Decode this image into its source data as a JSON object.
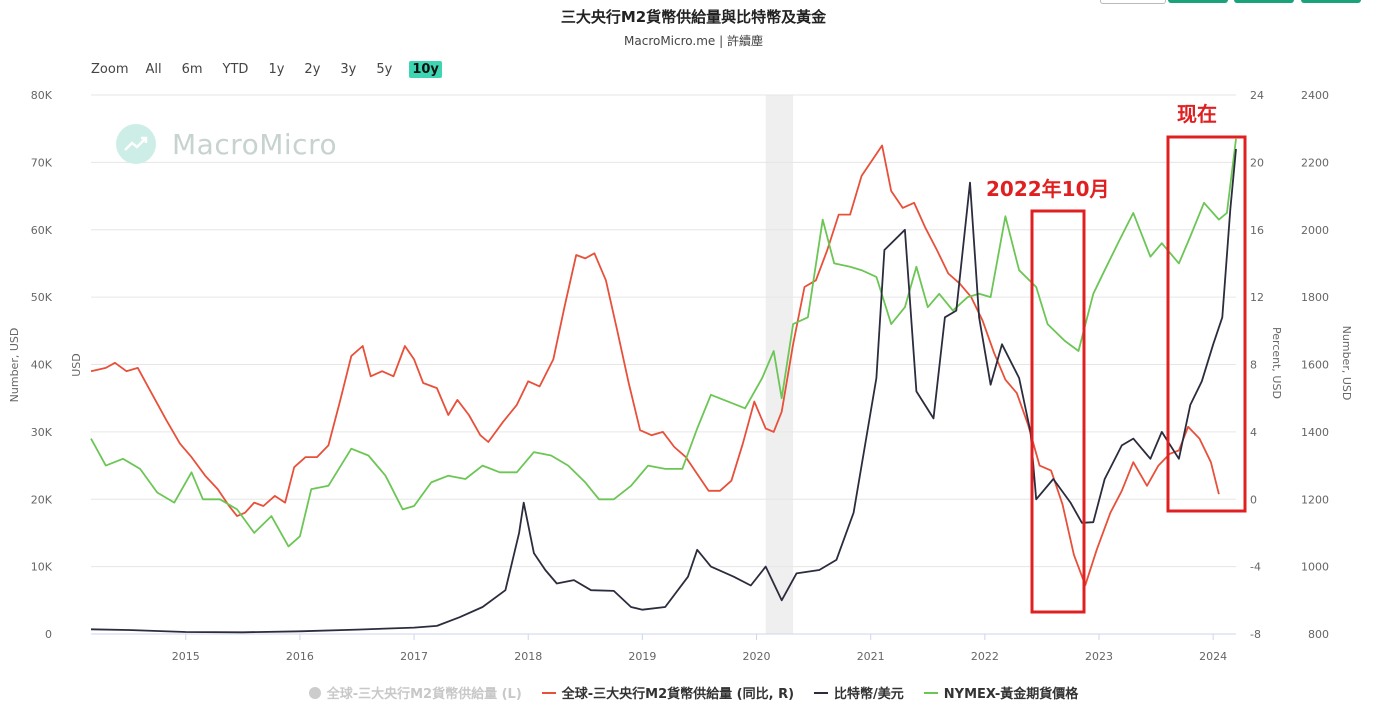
{
  "header": {
    "title": "三大央行M2貨幣供給量與比特幣及黃金",
    "subtitle": "MacroMicro.me | 許續塵"
  },
  "zoom": {
    "label": "Zoom",
    "options": [
      "All",
      "6m",
      "YTD",
      "1y",
      "2y",
      "3y",
      "5y",
      "10y"
    ],
    "selected": "10y"
  },
  "watermark": {
    "text": "MacroMicro"
  },
  "annotations": {
    "oct2022": "2022年10月",
    "now": "现在"
  },
  "legend": [
    {
      "label": "全球-三大央行M2貨幣供給量 (L)",
      "color": "#cccccc",
      "hidden": true
    },
    {
      "label": "全球-三大央行M2貨幣供給量 (同比, R)",
      "color": "#e8503a",
      "hidden": false
    },
    {
      "label": "比特幣/美元",
      "color": "#2b2d3e",
      "hidden": false
    },
    {
      "label": "NYMEX-黃金期貨價格",
      "color": "#6cc655",
      "hidden": false
    }
  ],
  "top_buttons": {
    "colors": [
      "#ffffff",
      "#1aa37a",
      "#1aa37a",
      "#1aa37a"
    ]
  },
  "chart_data": {
    "type": "line",
    "title": "三大央行M2貨幣供給量與比特幣及黃金",
    "subtitle": "MacroMicro.me | 許續塵",
    "x_range": [
      2014.17,
      2024.2
    ],
    "x_ticks": [
      "2015",
      "2016",
      "2017",
      "2018",
      "2019",
      "2020",
      "2021",
      "2022",
      "2023",
      "2024"
    ],
    "shaded_period": [
      2020.08,
      2020.32
    ],
    "axes": {
      "left": {
        "label": "Number, USD",
        "unit_label": "USD",
        "min": 0,
        "max": 80000,
        "ticks": [
          "0",
          "10K",
          "20K",
          "30K",
          "40K",
          "50K",
          "60K",
          "70K",
          "80K"
        ]
      },
      "right_pct": {
        "label": "Percent, USD",
        "min": -8,
        "max": 24,
        "ticks": [
          "-8",
          "-4",
          "0",
          "4",
          "8",
          "12",
          "16",
          "20",
          "24"
        ]
      },
      "right_gold": {
        "label": "Number, USD",
        "min": 800,
        "max": 2400,
        "ticks": [
          "800",
          "1000",
          "1200",
          "1400",
          "1600",
          "1800",
          "2000",
          "2200",
          "2400"
        ]
      }
    },
    "series": [
      {
        "name": "全球-三大央行M2貨幣供給量 (同比, R)",
        "axis": "right_pct",
        "color": "#e8503a",
        "points": [
          [
            2014.17,
            7.6
          ],
          [
            2014.3,
            7.8
          ],
          [
            2014.38,
            8.1
          ],
          [
            2014.48,
            7.6
          ],
          [
            2014.58,
            7.8
          ],
          [
            2014.7,
            6.3
          ],
          [
            2014.83,
            4.7
          ],
          [
            2014.95,
            3.3
          ],
          [
            2015.05,
            2.5
          ],
          [
            2015.17,
            1.4
          ],
          [
            2015.28,
            0.6
          ],
          [
            2015.38,
            -0.4
          ],
          [
            2015.45,
            -1.0
          ],
          [
            2015.52,
            -0.8
          ],
          [
            2015.6,
            -0.2
          ],
          [
            2015.68,
            -0.4
          ],
          [
            2015.78,
            0.2
          ],
          [
            2015.87,
            -0.2
          ],
          [
            2015.95,
            1.9
          ],
          [
            2016.05,
            2.5
          ],
          [
            2016.15,
            2.5
          ],
          [
            2016.25,
            3.2
          ],
          [
            2016.35,
            5.8
          ],
          [
            2016.45,
            8.5
          ],
          [
            2016.55,
            9.1
          ],
          [
            2016.62,
            7.3
          ],
          [
            2016.72,
            7.6
          ],
          [
            2016.82,
            7.3
          ],
          [
            2016.92,
            9.1
          ],
          [
            2017.0,
            8.3
          ],
          [
            2017.08,
            6.9
          ],
          [
            2017.2,
            6.6
          ],
          [
            2017.3,
            5.0
          ],
          [
            2017.38,
            5.9
          ],
          [
            2017.48,
            5.0
          ],
          [
            2017.58,
            3.8
          ],
          [
            2017.65,
            3.4
          ],
          [
            2017.78,
            4.6
          ],
          [
            2017.9,
            5.6
          ],
          [
            2018.0,
            7.0
          ],
          [
            2018.1,
            6.7
          ],
          [
            2018.22,
            8.3
          ],
          [
            2018.32,
            11.5
          ],
          [
            2018.42,
            14.5
          ],
          [
            2018.5,
            14.3
          ],
          [
            2018.58,
            14.6
          ],
          [
            2018.68,
            13.0
          ],
          [
            2018.78,
            10.0
          ],
          [
            2018.88,
            6.9
          ],
          [
            2018.98,
            4.1
          ],
          [
            2019.08,
            3.8
          ],
          [
            2019.18,
            4.0
          ],
          [
            2019.28,
            3.1
          ],
          [
            2019.38,
            2.5
          ],
          [
            2019.48,
            1.5
          ],
          [
            2019.58,
            0.5
          ],
          [
            2019.68,
            0.5
          ],
          [
            2019.78,
            1.1
          ],
          [
            2019.88,
            3.3
          ],
          [
            2019.98,
            5.8
          ],
          [
            2020.08,
            4.2
          ],
          [
            2020.15,
            4.0
          ],
          [
            2020.22,
            5.2
          ],
          [
            2020.32,
            9.2
          ],
          [
            2020.42,
            12.6
          ],
          [
            2020.52,
            13.0
          ],
          [
            2020.62,
            14.8
          ],
          [
            2020.72,
            16.9
          ],
          [
            2020.82,
            16.9
          ],
          [
            2020.92,
            19.2
          ],
          [
            2021.02,
            20.2
          ],
          [
            2021.1,
            21.0
          ],
          [
            2021.18,
            18.3
          ],
          [
            2021.28,
            17.3
          ],
          [
            2021.38,
            17.6
          ],
          [
            2021.48,
            16.1
          ],
          [
            2021.58,
            14.8
          ],
          [
            2021.68,
            13.4
          ],
          [
            2021.78,
            12.8
          ],
          [
            2021.88,
            12.0
          ],
          [
            2021.98,
            10.6
          ],
          [
            2022.08,
            8.7
          ],
          [
            2022.18,
            7.1
          ],
          [
            2022.28,
            6.3
          ],
          [
            2022.38,
            4.4
          ],
          [
            2022.48,
            2.0
          ],
          [
            2022.58,
            1.7
          ],
          [
            2022.68,
            -0.3
          ],
          [
            2022.78,
            -3.3
          ],
          [
            2022.88,
            -5.1
          ],
          [
            2022.98,
            -3.0
          ],
          [
            2023.1,
            -0.8
          ],
          [
            2023.2,
            0.5
          ],
          [
            2023.3,
            2.2
          ],
          [
            2023.42,
            0.8
          ],
          [
            2023.52,
            2.0
          ],
          [
            2023.62,
            2.7
          ],
          [
            2023.7,
            2.9
          ],
          [
            2023.78,
            4.3
          ],
          [
            2023.88,
            3.6
          ],
          [
            2023.98,
            2.2
          ],
          [
            2024.05,
            0.3
          ]
        ]
      },
      {
        "name": "比特幣/美元",
        "axis": "left",
        "color": "#2b2d3e",
        "points": [
          [
            2014.17,
            700
          ],
          [
            2014.5,
            600
          ],
          [
            2015.0,
            300
          ],
          [
            2015.5,
            250
          ],
          [
            2016.0,
            400
          ],
          [
            2016.5,
            650
          ],
          [
            2017.0,
            950
          ],
          [
            2017.2,
            1200
          ],
          [
            2017.4,
            2500
          ],
          [
            2017.6,
            4000
          ],
          [
            2017.8,
            6500
          ],
          [
            2017.92,
            15000
          ],
          [
            2017.96,
            19500
          ],
          [
            2018.05,
            12000
          ],
          [
            2018.15,
            9500
          ],
          [
            2018.25,
            7500
          ],
          [
            2018.4,
            8000
          ],
          [
            2018.55,
            6500
          ],
          [
            2018.75,
            6400
          ],
          [
            2018.9,
            4000
          ],
          [
            2019.0,
            3600
          ],
          [
            2019.2,
            4000
          ],
          [
            2019.4,
            8500
          ],
          [
            2019.48,
            12500
          ],
          [
            2019.6,
            10000
          ],
          [
            2019.8,
            8500
          ],
          [
            2019.95,
            7200
          ],
          [
            2020.08,
            10000
          ],
          [
            2020.22,
            5000
          ],
          [
            2020.35,
            9000
          ],
          [
            2020.55,
            9500
          ],
          [
            2020.7,
            11000
          ],
          [
            2020.85,
            18000
          ],
          [
            2020.95,
            28000
          ],
          [
            2021.05,
            38000
          ],
          [
            2021.12,
            57000
          ],
          [
            2021.3,
            60000
          ],
          [
            2021.4,
            36000
          ],
          [
            2021.55,
            32000
          ],
          [
            2021.65,
            47000
          ],
          [
            2021.75,
            48000
          ],
          [
            2021.87,
            67000
          ],
          [
            2021.95,
            47000
          ],
          [
            2022.05,
            37000
          ],
          [
            2022.15,
            43000
          ],
          [
            2022.3,
            38000
          ],
          [
            2022.4,
            30000
          ],
          [
            2022.45,
            20000
          ],
          [
            2022.6,
            23000
          ],
          [
            2022.75,
            19500
          ],
          [
            2022.85,
            16500
          ],
          [
            2022.95,
            16600
          ],
          [
            2023.05,
            23000
          ],
          [
            2023.2,
            28000
          ],
          [
            2023.3,
            29000
          ],
          [
            2023.45,
            26000
          ],
          [
            2023.55,
            30000
          ],
          [
            2023.7,
            26000
          ],
          [
            2023.8,
            34000
          ],
          [
            2023.9,
            37500
          ],
          [
            2024.0,
            43000
          ],
          [
            2024.08,
            47000
          ],
          [
            2024.15,
            63000
          ],
          [
            2024.2,
            72000
          ]
        ]
      },
      {
        "name": "NYMEX-黃金期貨價格",
        "axis": "right_gold",
        "color": "#6cc655",
        "points": [
          [
            2014.17,
            1380
          ],
          [
            2014.3,
            1300
          ],
          [
            2014.45,
            1320
          ],
          [
            2014.6,
            1290
          ],
          [
            2014.75,
            1220
          ],
          [
            2014.9,
            1190
          ],
          [
            2015.05,
            1280
          ],
          [
            2015.15,
            1200
          ],
          [
            2015.3,
            1200
          ],
          [
            2015.45,
            1170
          ],
          [
            2015.6,
            1100
          ],
          [
            2015.75,
            1150
          ],
          [
            2015.9,
            1060
          ],
          [
            2016.0,
            1090
          ],
          [
            2016.1,
            1230
          ],
          [
            2016.25,
            1240
          ],
          [
            2016.45,
            1350
          ],
          [
            2016.6,
            1330
          ],
          [
            2016.75,
            1270
          ],
          [
            2016.9,
            1170
          ],
          [
            2017.0,
            1180
          ],
          [
            2017.15,
            1250
          ],
          [
            2017.3,
            1270
          ],
          [
            2017.45,
            1260
          ],
          [
            2017.6,
            1300
          ],
          [
            2017.75,
            1280
          ],
          [
            2017.9,
            1280
          ],
          [
            2018.05,
            1340
          ],
          [
            2018.2,
            1330
          ],
          [
            2018.35,
            1300
          ],
          [
            2018.5,
            1250
          ],
          [
            2018.62,
            1200
          ],
          [
            2018.75,
            1200
          ],
          [
            2018.9,
            1240
          ],
          [
            2019.05,
            1300
          ],
          [
            2019.2,
            1290
          ],
          [
            2019.35,
            1290
          ],
          [
            2019.48,
            1410
          ],
          [
            2019.6,
            1510
          ],
          [
            2019.75,
            1490
          ],
          [
            2019.9,
            1470
          ],
          [
            2020.05,
            1560
          ],
          [
            2020.15,
            1640
          ],
          [
            2020.22,
            1500
          ],
          [
            2020.32,
            1720
          ],
          [
            2020.45,
            1740
          ],
          [
            2020.58,
            2030
          ],
          [
            2020.68,
            1900
          ],
          [
            2020.82,
            1890
          ],
          [
            2020.92,
            1880
          ],
          [
            2021.05,
            1860
          ],
          [
            2021.18,
            1720
          ],
          [
            2021.3,
            1770
          ],
          [
            2021.4,
            1890
          ],
          [
            2021.5,
            1770
          ],
          [
            2021.6,
            1810
          ],
          [
            2021.72,
            1760
          ],
          [
            2021.85,
            1800
          ],
          [
            2021.95,
            1810
          ],
          [
            2022.05,
            1800
          ],
          [
            2022.18,
            2040
          ],
          [
            2022.3,
            1880
          ],
          [
            2022.45,
            1830
          ],
          [
            2022.55,
            1720
          ],
          [
            2022.7,
            1670
          ],
          [
            2022.82,
            1640
          ],
          [
            2022.95,
            1810
          ],
          [
            2023.05,
            1880
          ],
          [
            2023.18,
            1970
          ],
          [
            2023.3,
            2050
          ],
          [
            2023.45,
            1920
          ],
          [
            2023.55,
            1960
          ],
          [
            2023.7,
            1900
          ],
          [
            2023.8,
            1980
          ],
          [
            2023.92,
            2080
          ],
          [
            2024.05,
            2030
          ],
          [
            2024.12,
            2050
          ],
          [
            2024.2,
            2270
          ]
        ]
      }
    ]
  }
}
